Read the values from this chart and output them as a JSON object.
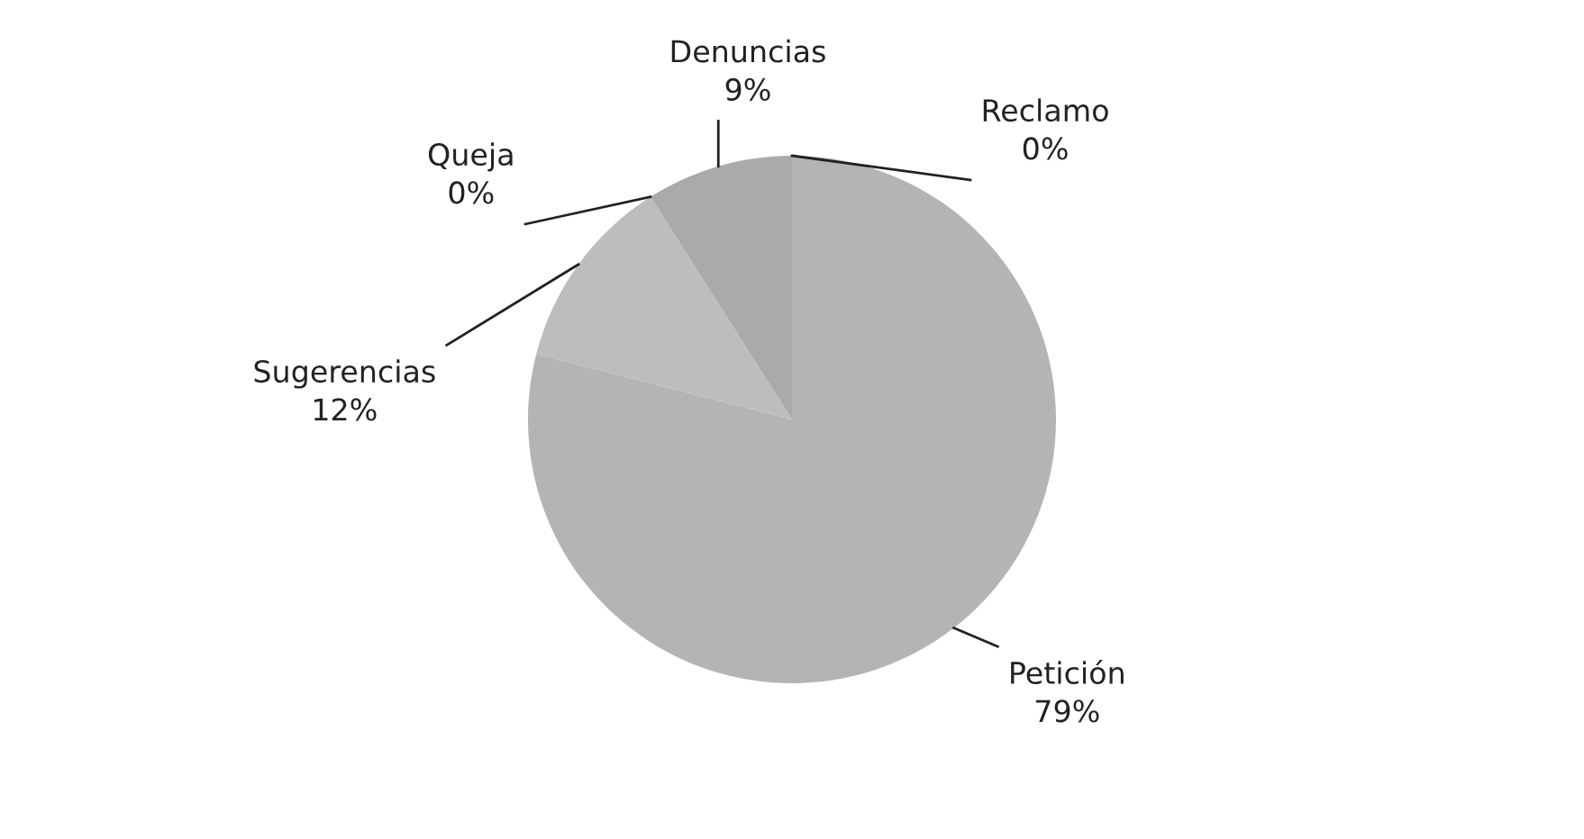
{
  "chart_data": {
    "type": "pie",
    "categories": [
      "Reclamo",
      "Petición",
      "Sugerencias",
      "Queja",
      "Denuncias"
    ],
    "values": [
      0,
      79,
      12,
      0,
      9
    ],
    "value_labels": [
      "0%",
      "79%",
      "12%",
      "0%",
      "9%"
    ],
    "colors": [
      "#b0b0b0",
      "#b4b4b4",
      "#bdbdbd",
      "#b8b8b8",
      "#aaaaaa"
    ],
    "legend": false
  }
}
